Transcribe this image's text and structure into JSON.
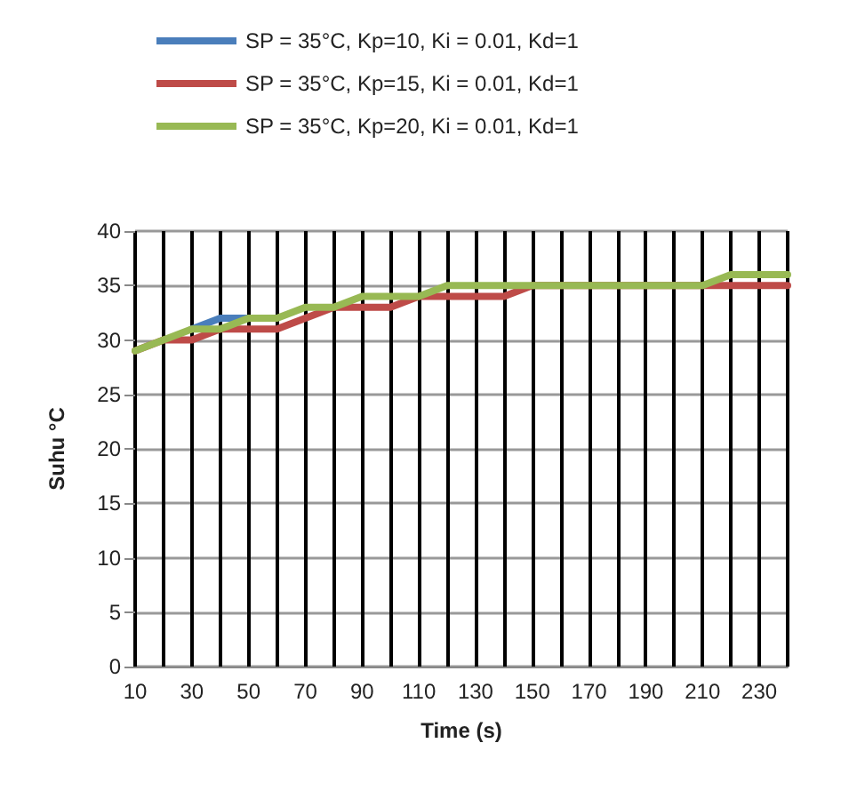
{
  "chart_data": {
    "type": "line",
    "xlabel": "Time (s)",
    "ylabel": "Suhu °C",
    "categories": [
      "10",
      null,
      "30",
      null,
      "50",
      null,
      "70",
      null,
      "90",
      null,
      "110",
      null,
      "130",
      null,
      "150",
      null,
      "170",
      null,
      "190",
      null,
      "210",
      null,
      "230",
      null
    ],
    "series": [
      {
        "name": "SP = 35°C, Kp=10, Ki = 0.01, Kd=1",
        "color": "#4a7ebb",
        "values": [
          null,
          null,
          31,
          32,
          32,
          null,
          null,
          null,
          null,
          null,
          null,
          null,
          null,
          null,
          null,
          null,
          null,
          null,
          null,
          null,
          null,
          null,
          null,
          null
        ]
      },
      {
        "name": "SP = 35°C, Kp=15, Ki = 0.01, Kd=1",
        "color": "#be4b48",
        "values": [
          29,
          30,
          30,
          31,
          31,
          31,
          32,
          33,
          33,
          33,
          34,
          34,
          34,
          34,
          35,
          35,
          35,
          35,
          35,
          35,
          35,
          35,
          35,
          35
        ]
      },
      {
        "name": "SP = 35°C, Kp=20, Ki = 0.01, Kd=1",
        "color": "#98b954",
        "values": [
          29,
          30,
          31,
          31,
          32,
          32,
          33,
          33,
          34,
          34,
          34,
          35,
          35,
          35,
          35,
          35,
          35,
          35,
          35,
          35,
          35,
          36,
          36,
          36
        ]
      }
    ],
    "ylim": [
      0,
      40
    ],
    "yticks": [
      0,
      5,
      10,
      15,
      20,
      25,
      30,
      35,
      40
    ],
    "grid": true,
    "legend": "top",
    "marker": "none",
    "line_style": "solid"
  }
}
